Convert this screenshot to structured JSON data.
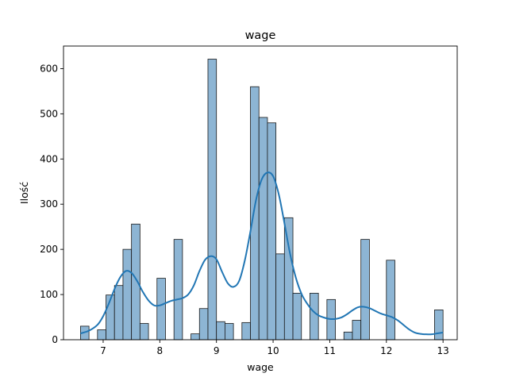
{
  "chart_data": {
    "type": "bar",
    "title": "wage",
    "xlabel": "wage",
    "ylabel": "Ilość",
    "xlim": [
      6.3,
      13.25
    ],
    "ylim": [
      0,
      650
    ],
    "xticks": [
      7,
      8,
      9,
      10,
      11,
      12,
      13
    ],
    "yticks": [
      0,
      100,
      200,
      300,
      400,
      500,
      600
    ],
    "grid": false,
    "bar_color": "#8db5d4",
    "kde_color": "#2176b4",
    "bins": [
      {
        "x0": 6.6,
        "x1": 6.75,
        "count": 30
      },
      {
        "x0": 6.9,
        "x1": 7.05,
        "count": 22
      },
      {
        "x0": 7.05,
        "x1": 7.2,
        "count": 99
      },
      {
        "x0": 7.2,
        "x1": 7.35,
        "count": 120
      },
      {
        "x0": 7.35,
        "x1": 7.5,
        "count": 200
      },
      {
        "x0": 7.5,
        "x1": 7.65,
        "count": 256
      },
      {
        "x0": 7.65,
        "x1": 7.8,
        "count": 36
      },
      {
        "x0": 7.95,
        "x1": 8.1,
        "count": 136
      },
      {
        "x0": 8.25,
        "x1": 8.4,
        "count": 222
      },
      {
        "x0": 8.55,
        "x1": 8.7,
        "count": 13
      },
      {
        "x0": 8.7,
        "x1": 8.85,
        "count": 69
      },
      {
        "x0": 8.85,
        "x1": 9.0,
        "count": 621
      },
      {
        "x0": 9.0,
        "x1": 9.15,
        "count": 40
      },
      {
        "x0": 9.15,
        "x1": 9.3,
        "count": 36
      },
      {
        "x0": 9.45,
        "x1": 9.6,
        "count": 38
      },
      {
        "x0": 9.6,
        "x1": 9.75,
        "count": 560
      },
      {
        "x0": 9.75,
        "x1": 9.9,
        "count": 492
      },
      {
        "x0": 9.9,
        "x1": 10.05,
        "count": 480
      },
      {
        "x0": 10.05,
        "x1": 10.2,
        "count": 190
      },
      {
        "x0": 10.2,
        "x1": 10.35,
        "count": 270
      },
      {
        "x0": 10.35,
        "x1": 10.5,
        "count": 103
      },
      {
        "x0": 10.65,
        "x1": 10.8,
        "count": 103
      },
      {
        "x0": 10.95,
        "x1": 11.1,
        "count": 89
      },
      {
        "x0": 11.25,
        "x1": 11.4,
        "count": 17
      },
      {
        "x0": 11.4,
        "x1": 11.55,
        "count": 43
      },
      {
        "x0": 11.55,
        "x1": 11.7,
        "count": 222
      },
      {
        "x0": 12.0,
        "x1": 12.15,
        "count": 176
      },
      {
        "x0": 12.85,
        "x1": 13.0,
        "count": 66
      }
    ],
    "kde": {
      "x": [
        6.6,
        6.75,
        6.9,
        7.0,
        7.1,
        7.2,
        7.3,
        7.4,
        7.5,
        7.6,
        7.7,
        7.8,
        7.9,
        8.0,
        8.1,
        8.2,
        8.3,
        8.4,
        8.5,
        8.6,
        8.7,
        8.8,
        8.9,
        9.0,
        9.1,
        9.2,
        9.3,
        9.4,
        9.5,
        9.6,
        9.7,
        9.8,
        9.9,
        10.0,
        10.1,
        10.2,
        10.3,
        10.4,
        10.5,
        10.6,
        10.7,
        10.8,
        10.9,
        11.0,
        11.1,
        11.2,
        11.3,
        11.4,
        11.5,
        11.6,
        11.7,
        11.8,
        11.9,
        12.0,
        12.1,
        12.2,
        12.3,
        12.4,
        12.5,
        12.6,
        12.7,
        12.8,
        12.9,
        13.0
      ],
      "y": [
        14,
        20,
        33,
        52,
        80,
        112,
        138,
        152,
        148,
        130,
        106,
        87,
        76,
        76,
        81,
        86,
        89,
        92,
        100,
        120,
        152,
        177,
        185,
        178,
        150,
        125,
        117,
        130,
        175,
        240,
        310,
        355,
        370,
        362,
        322,
        258,
        190,
        138,
        102,
        80,
        64,
        54,
        49,
        46,
        46,
        49,
        56,
        65,
        72,
        73,
        70,
        64,
        58,
        54,
        50,
        43,
        33,
        23,
        16,
        13,
        12,
        12,
        14,
        16
      ]
    }
  }
}
